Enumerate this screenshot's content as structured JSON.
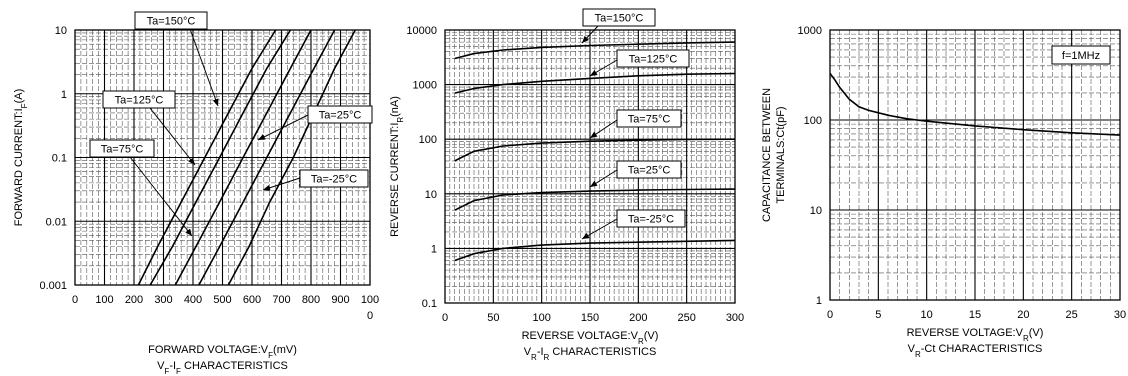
{
  "chart_data": [
    {
      "type": "line",
      "caption": "VF-IF CHARACTERISTICS",
      "caption_parts": {
        "a": "V",
        "a_sub": "F",
        "b": "-I",
        "b_sub": "F",
        "c": " CHARACTERISTICS"
      },
      "xlabel": "FORWARD VOLTAGE:VF(mV)",
      "xlabel_parts": {
        "pre": "FORWARD VOLTAGE:V",
        "sub": "F",
        "post": "(mV)"
      },
      "ylabel": "FORWARD CURRENT:IF(A)",
      "ylabel_parts": {
        "pre": "FORWARD CURRENT:I",
        "sub": "F",
        "post": "(A)"
      },
      "x_scale": "linear",
      "y_scale": "log",
      "xlim": [
        0,
        1000
      ],
      "ylim": [
        0.001,
        10
      ],
      "xticks": [
        "0",
        "100",
        "200",
        "300",
        "400",
        "500",
        "600",
        "700",
        "800",
        "900",
        "100"
      ],
      "xtick_overflow": "0",
      "yticks": [
        "0.001",
        "0.01",
        "0.1",
        "1",
        "10"
      ],
      "grid": true,
      "series": [
        {
          "name": "Ta=150°C",
          "x": [
            215,
            280,
            360,
            440,
            520,
            600,
            680
          ],
          "y": [
            0.001,
            0.004,
            0.02,
            0.1,
            0.5,
            2.5,
            10
          ]
        },
        {
          "name": "Ta=125°C",
          "x": [
            255,
            330,
            410,
            490,
            570,
            650,
            730
          ],
          "y": [
            0.001,
            0.004,
            0.02,
            0.1,
            0.5,
            2.5,
            10
          ]
        },
        {
          "name": "Ta=75°C",
          "x": [
            340,
            410,
            490,
            570,
            650,
            730,
            800
          ],
          "y": [
            0.001,
            0.004,
            0.02,
            0.1,
            0.5,
            2.5,
            10
          ]
        },
        {
          "name": "Ta=25°C",
          "x": [
            420,
            490,
            570,
            650,
            730,
            810,
            880
          ],
          "y": [
            0.001,
            0.004,
            0.02,
            0.1,
            0.5,
            2.5,
            10
          ]
        },
        {
          "name": "Ta=-25°C",
          "x": [
            520,
            590,
            660,
            740,
            810,
            880,
            950
          ],
          "y": [
            0.001,
            0.004,
            0.02,
            0.1,
            0.5,
            2.5,
            10
          ]
        }
      ],
      "annotations": [
        {
          "text": "Ta=150°C",
          "series": 0
        },
        {
          "text": "Ta=125°C",
          "series": 1
        },
        {
          "text": "Ta=75°C",
          "series": 2
        },
        {
          "text": "Ta=25°C",
          "series": 3
        },
        {
          "text": "Ta=-25°C",
          "series": 4
        }
      ]
    },
    {
      "type": "line",
      "caption": "VR-IR CHARACTERISTICS",
      "caption_parts": {
        "a": "V",
        "a_sub": "R",
        "b": "-I",
        "b_sub": "R",
        "c": " CHARACTERISTICS"
      },
      "xlabel": "REVERSE VOLTAGE:VR(V)",
      "xlabel_parts": {
        "pre": "REVERSE VOLTAGE:V",
        "sub": "R",
        "post": "(V)"
      },
      "ylabel": "REVERSE CURRENT:IR(nA)",
      "ylabel_parts": {
        "pre": "REVERSE CURRENT:I",
        "sub": "R",
        "post": "(nA)"
      },
      "x_scale": "linear",
      "y_scale": "log",
      "xlim": [
        0,
        300
      ],
      "ylim": [
        0.1,
        10000
      ],
      "xticks": [
        "0",
        "50",
        "100",
        "150",
        "200",
        "250",
        "300"
      ],
      "yticks": [
        "0.1",
        "1",
        "10",
        "100",
        "1000",
        "10000"
      ],
      "grid": true,
      "series": [
        {
          "name": "Ta=150°C",
          "x": [
            10,
            30,
            60,
            100,
            150,
            200,
            250,
            300
          ],
          "y": [
            3000,
            3700,
            4300,
            4800,
            5200,
            5500,
            5800,
            6000
          ]
        },
        {
          "name": "Ta=125°C",
          "x": [
            10,
            30,
            60,
            100,
            150,
            200,
            250,
            300
          ],
          "y": [
            700,
            850,
            1000,
            1150,
            1300,
            1450,
            1550,
            1600
          ]
        },
        {
          "name": "Ta=75°C",
          "x": [
            10,
            30,
            60,
            100,
            150,
            200,
            250,
            300
          ],
          "y": [
            40,
            60,
            75,
            85,
            92,
            96,
            99,
            100
          ]
        },
        {
          "name": "Ta=25°C",
          "x": [
            10,
            30,
            60,
            100,
            150,
            200,
            250,
            300
          ],
          "y": [
            5,
            7.5,
            9.5,
            10.5,
            11.2,
            11.7,
            12,
            12.2
          ]
        },
        {
          "name": "Ta=-25°C",
          "x": [
            10,
            30,
            60,
            100,
            150,
            200,
            250,
            300
          ],
          "y": [
            0.6,
            0.8,
            1.0,
            1.15,
            1.25,
            1.3,
            1.35,
            1.4
          ]
        }
      ],
      "annotations": [
        {
          "text": "Ta=150°C",
          "series": 0
        },
        {
          "text": "Ta=125°C",
          "series": 1
        },
        {
          "text": "Ta=75°C",
          "series": 2
        },
        {
          "text": "Ta=25°C",
          "series": 3
        },
        {
          "text": "Ta=-25°C",
          "series": 4
        }
      ]
    },
    {
      "type": "line",
      "caption": "VR-Ct CHARACTERISTICS",
      "caption_parts": {
        "a": "V",
        "a_sub": "R",
        "b": "-Ct",
        "b_sub": "",
        "c": " CHARACTERISTICS"
      },
      "xlabel": "REVERSE VOLTAGE:VR(V)",
      "xlabel_parts": {
        "pre": "REVERSE VOLTAGE:V",
        "sub": "R",
        "post": "(V)"
      },
      "ylabel": "CAPACITANCE BETWEEN TERMINALS:Ct(pF)",
      "ylabel_lines": [
        "CAPACITANCE BETWEEN",
        "TERMINALS:Ct(pF)"
      ],
      "x_scale": "linear",
      "y_scale": "log",
      "xlim": [
        0,
        30
      ],
      "ylim": [
        1,
        1000
      ],
      "xticks": [
        "0",
        "5",
        "10",
        "15",
        "20",
        "25",
        "30"
      ],
      "yticks": [
        "1",
        "10",
        "100",
        "1000"
      ],
      "grid": true,
      "series": [
        {
          "name": "",
          "x": [
            0,
            0.5,
            1,
            2,
            3,
            4,
            6,
            8,
            10,
            15,
            20,
            25,
            30
          ],
          "y": [
            330,
            280,
            230,
            170,
            140,
            128,
            113,
            103,
            97,
            86,
            78,
            72,
            68
          ]
        }
      ],
      "legend_box": "f=1MHz"
    }
  ]
}
